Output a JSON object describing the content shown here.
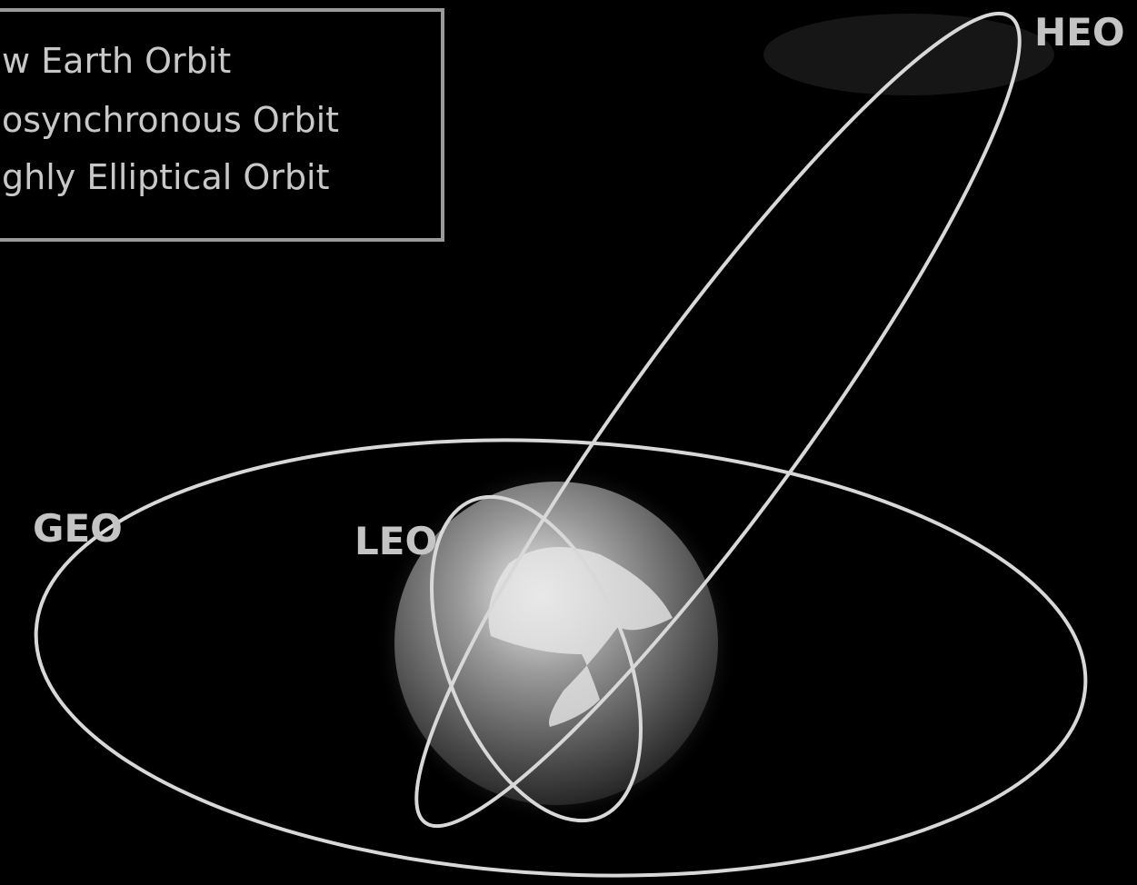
{
  "legend": {
    "items": [
      "w Earth Orbit",
      "osynchronous Orbit",
      "ghly Elliptical Orbit"
    ]
  },
  "labels": {
    "heo": "HEO",
    "geo": "GEO",
    "leo": "LEO"
  }
}
